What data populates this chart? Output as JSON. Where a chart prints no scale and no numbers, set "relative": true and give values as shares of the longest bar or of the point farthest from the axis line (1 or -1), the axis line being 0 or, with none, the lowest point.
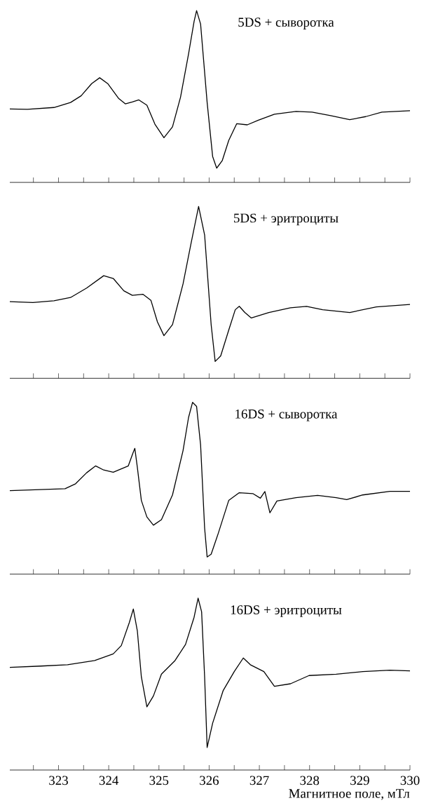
{
  "chart_data": [
    {
      "type": "line",
      "title": "5DS + сыворотка",
      "relative": true,
      "color": "#000000",
      "xlim": [
        322.03,
        330
      ],
      "tick_labels": false,
      "xticks": [
        {
          "value": 322.5,
          "label": null
        },
        323,
        {
          "value": 323.5,
          "label": null
        },
        324,
        {
          "value": 324.5,
          "label": null
        },
        325,
        {
          "value": 325.5,
          "label": null
        },
        326,
        {
          "value": 326.5,
          "label": null
        },
        327,
        {
          "value": 327.5,
          "label": null
        },
        328,
        {
          "value": 328.5,
          "label": null
        },
        329,
        {
          "value": 329.5,
          "label": null
        },
        330
      ],
      "x": [
        322.03,
        322.38,
        322.91,
        323.24,
        323.45,
        323.66,
        323.82,
        323.98,
        324.2,
        324.33,
        324.47,
        324.6,
        324.76,
        324.92,
        325.1,
        325.27,
        325.43,
        325.59,
        325.7,
        325.75,
        325.83,
        325.96,
        326.07,
        326.15,
        326.26,
        326.39,
        326.55,
        326.76,
        326.98,
        327.3,
        327.73,
        328.05,
        328.42,
        328.8,
        329.12,
        329.44,
        330.0
      ],
      "values": [
        0.427,
        0.425,
        0.436,
        0.465,
        0.504,
        0.575,
        0.609,
        0.575,
        0.488,
        0.457,
        0.468,
        0.48,
        0.449,
        0.339,
        0.26,
        0.323,
        0.496,
        0.748,
        0.937,
        1.0,
        0.921,
        0.465,
        0.15,
        0.083,
        0.126,
        0.244,
        0.342,
        0.335,
        0.362,
        0.397,
        0.413,
        0.409,
        0.389,
        0.365,
        0.383,
        0.409,
        0.417
      ]
    },
    {
      "type": "line",
      "title": "5DS + эритроциты",
      "relative": true,
      "color": "#000000",
      "xlim": [
        322.03,
        330
      ],
      "tick_labels": false,
      "xticks": [
        {
          "value": 322.5,
          "label": null
        },
        323,
        {
          "value": 323.5,
          "label": null
        },
        324,
        {
          "value": 324.5,
          "label": null
        },
        325,
        {
          "value": 325.5,
          "label": null
        },
        326,
        {
          "value": 326.5,
          "label": null
        },
        327,
        {
          "value": 327.5,
          "label": null
        },
        328,
        {
          "value": 328.5,
          "label": null
        },
        329,
        {
          "value": 329.5,
          "label": null
        },
        330
      ],
      "x": [
        322.03,
        322.49,
        322.91,
        323.24,
        323.56,
        323.9,
        324.09,
        324.3,
        324.47,
        324.68,
        324.84,
        324.97,
        325.1,
        325.27,
        325.48,
        325.64,
        325.79,
        325.91,
        326.04,
        326.12,
        326.23,
        326.39,
        326.52,
        326.6,
        326.71,
        326.84,
        327.19,
        327.62,
        327.94,
        328.26,
        328.8,
        329.33,
        330.0
      ],
      "values": [
        0.446,
        0.441,
        0.451,
        0.47,
        0.525,
        0.597,
        0.581,
        0.509,
        0.483,
        0.489,
        0.454,
        0.328,
        0.248,
        0.312,
        0.549,
        0.786,
        1.0,
        0.834,
        0.312,
        0.098,
        0.13,
        0.28,
        0.399,
        0.419,
        0.383,
        0.351,
        0.383,
        0.41,
        0.418,
        0.399,
        0.383,
        0.415,
        0.43
      ]
    },
    {
      "type": "line",
      "title": "16DS + сыворотка",
      "relative": true,
      "color": "#000000",
      "xlim": [
        322.03,
        330
      ],
      "tick_labels": false,
      "xticks": [
        {
          "value": 322.5,
          "label": null
        },
        323,
        {
          "value": 323.5,
          "label": null
        },
        324,
        {
          "value": 324.5,
          "label": null
        },
        325,
        {
          "value": 325.5,
          "label": null
        },
        326,
        {
          "value": 326.5,
          "label": null
        },
        327,
        {
          "value": 327.5,
          "label": null
        },
        328,
        {
          "value": 328.5,
          "label": null
        },
        329,
        {
          "value": 329.5,
          "label": null
        },
        330
      ],
      "x": [
        322.03,
        323.13,
        323.34,
        323.56,
        323.74,
        323.9,
        324.09,
        324.39,
        324.48,
        324.52,
        324.57,
        324.65,
        324.76,
        324.89,
        325.05,
        325.27,
        325.48,
        325.59,
        325.67,
        325.75,
        325.83,
        325.91,
        325.96,
        326.04,
        326.18,
        326.39,
        326.6,
        326.87,
        327.02,
        327.11,
        327.21,
        327.35,
        327.73,
        328.16,
        328.53,
        328.74,
        329.06,
        329.6,
        330.0
      ],
      "values": [
        0.486,
        0.497,
        0.526,
        0.59,
        0.63,
        0.606,
        0.593,
        0.63,
        0.703,
        0.732,
        0.622,
        0.429,
        0.333,
        0.285,
        0.317,
        0.461,
        0.719,
        0.912,
        1.0,
        0.976,
        0.751,
        0.268,
        0.1,
        0.116,
        0.236,
        0.429,
        0.474,
        0.469,
        0.442,
        0.481,
        0.357,
        0.426,
        0.445,
        0.458,
        0.445,
        0.434,
        0.461,
        0.482,
        0.482
      ]
    },
    {
      "type": "line",
      "title": "16DS + эритроциты",
      "xlabel": "Магнитное поле, мТл",
      "relative": true,
      "color": "#000000",
      "xlim": [
        322.03,
        330
      ],
      "tick_labels": "x",
      "xticks": [
        {
          "value": 322.5,
          "label": null
        },
        323,
        {
          "value": 323.5,
          "label": null
        },
        324,
        {
          "value": 324.5,
          "label": null
        },
        325,
        {
          "value": 325.5,
          "label": null
        },
        326,
        {
          "value": 326.5,
          "label": null
        },
        327,
        {
          "value": 327.5,
          "label": null
        },
        328,
        {
          "value": 328.5,
          "label": null
        },
        329,
        {
          "value": 329.5,
          "label": null
        },
        330
      ],
      "x": [
        322.03,
        322.65,
        323.18,
        323.72,
        324.09,
        324.25,
        324.41,
        324.49,
        324.57,
        324.65,
        324.76,
        324.89,
        325.05,
        325.32,
        325.53,
        325.7,
        325.78,
        325.85,
        325.91,
        325.96,
        326.07,
        326.28,
        326.5,
        326.68,
        326.82,
        327.09,
        327.3,
        327.62,
        327.99,
        328.53,
        329.06,
        329.6,
        330.0
      ],
      "values": [
        0.597,
        0.605,
        0.613,
        0.637,
        0.676,
        0.724,
        0.858,
        0.937,
        0.81,
        0.542,
        0.368,
        0.431,
        0.558,
        0.637,
        0.731,
        0.889,
        1.0,
        0.921,
        0.542,
        0.131,
        0.273,
        0.463,
        0.573,
        0.652,
        0.613,
        0.573,
        0.487,
        0.502,
        0.55,
        0.558,
        0.573,
        0.581,
        0.577
      ]
    }
  ]
}
